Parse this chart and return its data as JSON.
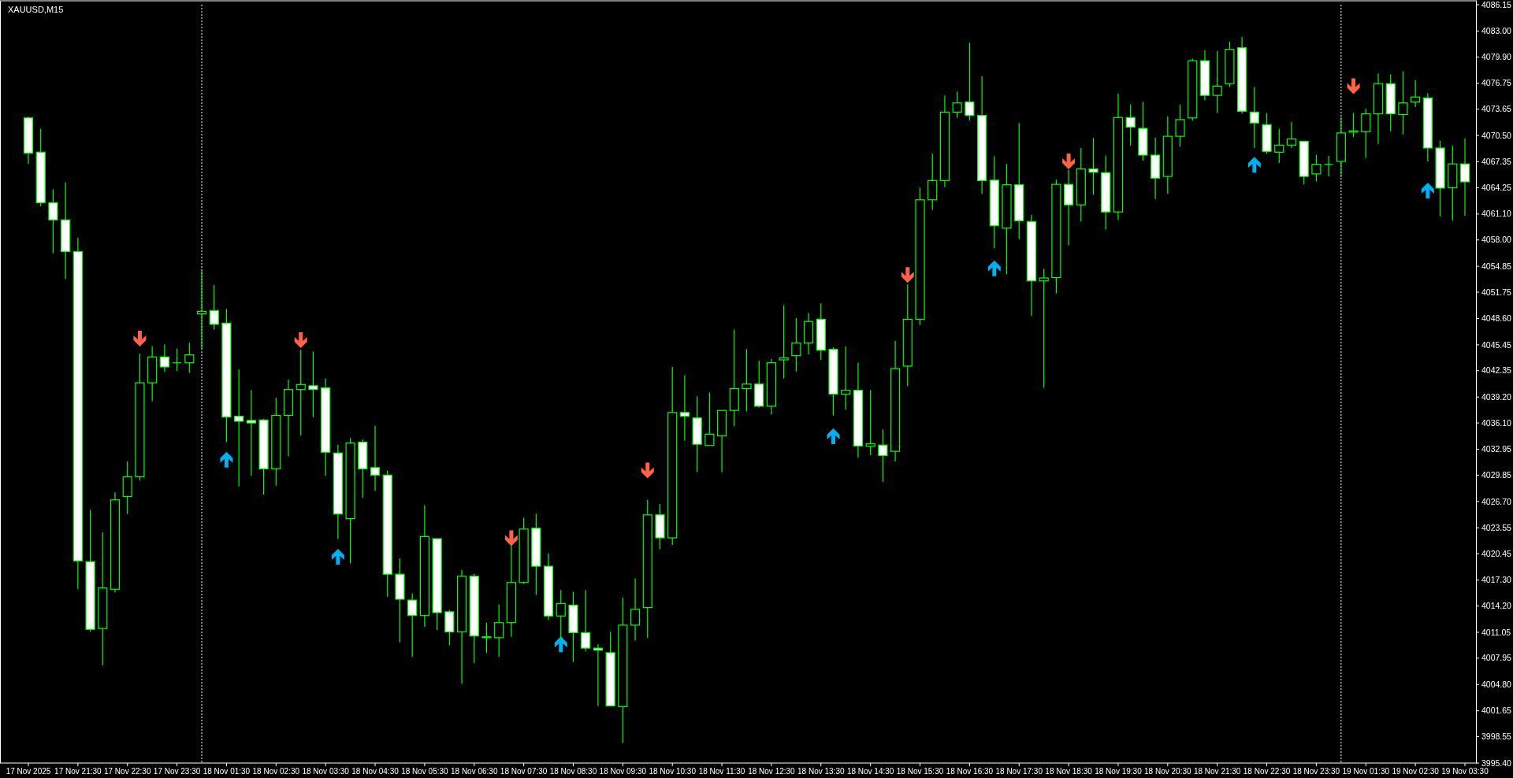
{
  "chart_data": {
    "type": "candlestick",
    "title": "XAUUSD,M15",
    "color": "#00ff00",
    "categories": [
      "17 Nov 2025",
      null,
      null,
      null,
      "17 Nov 21:30",
      null,
      null,
      null,
      "17 Nov 22:30",
      null,
      null,
      null,
      "17 Nov 23:30",
      null,
      null,
      null,
      "18 Nov 01:30",
      null,
      null,
      null,
      "18 Nov 02:30",
      null,
      null,
      null,
      "18 Nov 03:30",
      null,
      null,
      null,
      "18 Nov 04:30",
      null,
      null,
      null,
      "18 Nov 05:30",
      null,
      null,
      null,
      "18 Nov 06:30",
      null,
      null,
      null,
      "18 Nov 07:30",
      null,
      null,
      null,
      "18 Nov 08:30",
      null,
      null,
      null,
      "18 Nov 09:30",
      null,
      null,
      null,
      "18 Nov 10:30",
      null,
      null,
      null,
      "18 Nov 11:30",
      null,
      null,
      null,
      "18 Nov 12:30",
      null,
      null,
      null,
      "18 Nov 13:30",
      null,
      null,
      null,
      "18 Nov 14:30",
      null,
      null,
      null,
      "18 Nov 15:30",
      null,
      null,
      null,
      "18 Nov 16:30",
      null,
      null,
      null,
      "18 Nov 17:30",
      null,
      null,
      null,
      "18 Nov 18:30",
      null,
      null,
      null,
      "18 Nov 19:30",
      null,
      null,
      null,
      "18 Nov 20:30",
      null,
      null,
      null,
      "18 Nov 21:30",
      null,
      null,
      null,
      "18 Nov 22:30",
      null,
      null,
      null,
      "18 Nov 23:30",
      null,
      null,
      null,
      "19 Nov 01:30",
      null,
      null,
      null,
      "19 Nov 02:30",
      null,
      null,
      null,
      "19 Nov 03:30"
    ],
    "ohlc": [
      [
        4072.6,
        4072.8,
        4067.1,
        4068.4
      ],
      [
        4068.5,
        4071.3,
        4062.0,
        4062.45
      ],
      [
        4062.45,
        4064.05,
        4056.4,
        4060.4
      ],
      [
        4060.4,
        4064.9,
        4053.35,
        4056.6
      ],
      [
        4056.6,
        4058.25,
        4016.2,
        4019.6
      ],
      [
        4019.5,
        4025.7,
        4011.1,
        4011.4
      ],
      [
        4011.5,
        4023.0,
        4007.1,
        4016.35
      ],
      [
        4016.2,
        4027.8,
        4015.8,
        4026.9
      ],
      [
        4027.3,
        4031.5,
        4025.2,
        4029.65
      ],
      [
        4029.65,
        4044.4,
        4029.2,
        4040.9
      ],
      [
        4040.9,
        4045.3,
        4038.7,
        4044.0
      ],
      [
        4044.0,
        4045.5,
        4042.2,
        4042.8
      ],
      [
        4043.3,
        4045.0,
        4042.3,
        4043.3
      ],
      [
        4043.3,
        4045.7,
        4042.1,
        4044.25
      ],
      [
        4049.15,
        4054.4,
        4045.0,
        4049.45
      ],
      [
        4049.55,
        4052.6,
        4047.25,
        4047.9
      ],
      [
        4048.05,
        4049.75,
        4033.8,
        4036.8
      ],
      [
        4036.9,
        4042.5,
        4028.5,
        4036.3
      ],
      [
        4036.4,
        4040.05,
        4029.8,
        4036.1
      ],
      [
        4036.45,
        4036.6,
        4027.5,
        4030.6
      ],
      [
        4030.6,
        4039.1,
        4028.6,
        4037.0
      ],
      [
        4037.0,
        4041.3,
        4032.1,
        4040.1
      ],
      [
        4040.1,
        4044.85,
        4034.6,
        4040.7
      ],
      [
        4040.55,
        4044.65,
        4036.8,
        4040.1
      ],
      [
        4040.3,
        4041.4,
        4029.8,
        4032.6
      ],
      [
        4032.5,
        4033.5,
        4022.2,
        4025.2
      ],
      [
        4024.65,
        4034.3,
        4019.3,
        4033.7
      ],
      [
        4033.8,
        4034.15,
        4027.1,
        4030.6
      ],
      [
        4030.75,
        4035.75,
        4027.95,
        4029.85
      ],
      [
        4029.85,
        4030.4,
        4015.3,
        4018.0
      ],
      [
        4018.0,
        4019.9,
        4009.85,
        4015.0
      ],
      [
        4014.9,
        4015.7,
        4008.1,
        4013.05
      ],
      [
        4013.05,
        4026.25,
        4011.7,
        4022.5
      ],
      [
        4022.25,
        4022.25,
        4011.3,
        4013.4
      ],
      [
        4013.5,
        4013.7,
        4009.5,
        4011.1
      ],
      [
        4011.1,
        4018.5,
        4004.9,
        4017.75
      ],
      [
        4017.75,
        4018.05,
        4007.35,
        4010.6
      ],
      [
        4010.5,
        4012.2,
        4008.6,
        4010.4
      ],
      [
        4010.4,
        4014.4,
        4008.1,
        4012.2
      ],
      [
        4012.2,
        4021.4,
        4010.5,
        4017.0
      ],
      [
        4017.0,
        4024.75,
        4016.85,
        4023.4
      ],
      [
        4023.5,
        4025.25,
        4015.5,
        4018.95
      ],
      [
        4018.95,
        4020.5,
        4012.5,
        4013.0
      ],
      [
        4013.0,
        4016.1,
        4010.3,
        4014.5
      ],
      [
        4014.3,
        4015.9,
        4007.5,
        4011.0
      ],
      [
        4011.0,
        4016.1,
        4008.75,
        4009.15
      ],
      [
        4009.15,
        4009.6,
        4002.2,
        4008.9
      ],
      [
        4008.6,
        4011.1,
        4002.2,
        4002.25
      ],
      [
        4002.15,
        4015.2,
        3997.8,
        4011.9
      ],
      [
        4011.9,
        4017.5,
        4010.05,
        4013.8
      ],
      [
        4014.0,
        4026.9,
        4010.35,
        4025.1
      ],
      [
        4025.1,
        4026.4,
        4021.0,
        4022.35
      ],
      [
        4022.35,
        4042.8,
        4021.5,
        4037.35
      ],
      [
        4037.35,
        4041.8,
        4034.0,
        4036.9
      ],
      [
        4036.7,
        4039.3,
        4030.25,
        4033.55
      ],
      [
        4033.4,
        4039.75,
        4033.4,
        4034.75
      ],
      [
        4034.55,
        4037.6,
        4030.2,
        4037.6
      ],
      [
        4037.6,
        4047.25,
        4035.7,
        4040.2
      ],
      [
        4040.2,
        4044.95,
        4037.5,
        4040.75
      ],
      [
        4040.75,
        4043.55,
        4037.95,
        4038.1
      ],
      [
        4038.1,
        4043.75,
        4037.1,
        4043.3
      ],
      [
        4043.65,
        4050.2,
        4041.4,
        4043.9
      ],
      [
        4044.15,
        4048.65,
        4042.25,
        4045.65
      ],
      [
        4045.65,
        4049.25,
        4044.3,
        4048.25
      ],
      [
        4048.5,
        4050.4,
        4043.65,
        4044.8
      ],
      [
        4044.9,
        4045.15,
        4037.0,
        4039.55
      ],
      [
        4039.55,
        4045.25,
        4037.7,
        4040.0
      ],
      [
        4040.0,
        4043.3,
        4031.95,
        4033.35
      ],
      [
        4033.3,
        4040.05,
        4032.25,
        4033.6
      ],
      [
        4033.45,
        4035.3,
        4029.05,
        4032.2
      ],
      [
        4032.7,
        4045.9,
        4031.5,
        4042.6
      ],
      [
        4042.9,
        4052.7,
        4040.5,
        4048.5
      ],
      [
        4048.5,
        4064.3,
        4047.8,
        4062.8
      ],
      [
        4062.8,
        4068.35,
        4061.6,
        4065.1
      ],
      [
        4065.1,
        4075.3,
        4064.3,
        4073.3
      ],
      [
        4073.3,
        4075.75,
        4072.6,
        4074.4
      ],
      [
        4074.5,
        4081.6,
        4072.3,
        4072.9
      ],
      [
        4072.9,
        4077.6,
        4063.5,
        4065.1
      ],
      [
        4065.15,
        4068.0,
        4057.0,
        4059.7
      ],
      [
        4059.4,
        4067.1,
        4053.9,
        4064.6
      ],
      [
        4064.6,
        4072.0,
        4058.1,
        4060.3
      ],
      [
        4060.2,
        4061.0,
        4048.9,
        4053.1
      ],
      [
        4053.1,
        4054.55,
        4040.3,
        4053.45
      ],
      [
        4053.5,
        4065.2,
        4051.6,
        4064.65
      ],
      [
        4064.65,
        4066.4,
        4057.35,
        4062.2
      ],
      [
        4062.2,
        4069.0,
        4060.2,
        4066.5
      ],
      [
        4066.5,
        4070.2,
        4063.4,
        4066.1
      ],
      [
        4066.05,
        4068.1,
        4059.25,
        4061.35
      ],
      [
        4061.35,
        4075.5,
        4060.4,
        4072.65
      ],
      [
        4072.65,
        4074.2,
        4069.3,
        4071.5
      ],
      [
        4071.35,
        4074.5,
        4067.5,
        4068.15
      ],
      [
        4068.15,
        4070.25,
        4062.9,
        4065.4
      ],
      [
        4065.6,
        4072.8,
        4063.5,
        4070.4
      ],
      [
        4070.4,
        4074.2,
        4069.15,
        4072.4
      ],
      [
        4072.6,
        4079.7,
        4072.3,
        4079.45
      ],
      [
        4079.45,
        4080.7,
        4074.7,
        4075.3
      ],
      [
        4075.3,
        4080.6,
        4073.2,
        4076.4
      ],
      [
        4076.7,
        4081.75,
        4076.3,
        4080.8
      ],
      [
        4081.0,
        4082.3,
        4073.1,
        4073.4
      ],
      [
        4073.3,
        4076.3,
        4069.0,
        4072.0
      ],
      [
        4071.8,
        4073.2,
        4068.3,
        4068.6
      ],
      [
        4068.5,
        4071.3,
        4067.2,
        4069.35
      ],
      [
        4069.35,
        4072.1,
        4069.0,
        4070.1
      ],
      [
        4069.8,
        4069.8,
        4064.65,
        4065.6
      ],
      [
        4065.9,
        4068.2,
        4065.0,
        4067.05
      ],
      [
        4067.05,
        4068.05,
        4065.6,
        4067.05
      ],
      [
        4067.4,
        4072.7,
        4065.5,
        4070.8
      ],
      [
        4070.9,
        4073.2,
        4070.3,
        4071.05
      ],
      [
        4070.95,
        4073.7,
        4067.8,
        4073.1
      ],
      [
        4073.1,
        4077.9,
        4069.5,
        4076.7
      ],
      [
        4076.7,
        4077.8,
        4071.0,
        4073.1
      ],
      [
        4073.0,
        4078.2,
        4070.6,
        4074.4
      ],
      [
        4074.5,
        4077.1,
        4073.9,
        4075.1
      ],
      [
        4075.0,
        4075.55,
        4067.4,
        4069.0
      ],
      [
        4069.0,
        4069.85,
        4060.8,
        4064.2
      ],
      [
        4064.25,
        4069.3,
        4060.3,
        4067.1
      ],
      [
        4067.1,
        4070.15,
        4060.9,
        4064.95
      ]
    ],
    "series": [
      {
        "type": "scatter",
        "color": "#ff6347",
        "values": [
          null,
          null,
          null,
          null,
          null,
          null,
          null,
          null,
          null,
          4046.2,
          null,
          null,
          null,
          null,
          null,
          null,
          null,
          null,
          null,
          null,
          null,
          null,
          4046.0,
          null,
          null,
          null,
          null,
          null,
          null,
          null,
          null,
          null,
          null,
          null,
          null,
          null,
          null,
          null,
          null,
          4022.3,
          null,
          null,
          null,
          null,
          null,
          null,
          null,
          null,
          null,
          null,
          4030.4,
          null,
          null,
          null,
          null,
          null,
          null,
          null,
          null,
          null,
          null,
          null,
          null,
          null,
          null,
          null,
          null,
          null,
          null,
          null,
          null,
          4053.8,
          null,
          null,
          null,
          null,
          null,
          null,
          null,
          null,
          null,
          null,
          null,
          null,
          4067.4,
          null,
          null,
          null,
          null,
          null,
          null,
          null,
          null,
          null,
          null,
          null,
          null,
          null,
          null,
          null,
          null,
          null,
          null,
          null,
          null,
          null,
          null,
          4076.4,
          null,
          null,
          null,
          null,
          null,
          null,
          null,
          null,
          null
        ]
      },
      {
        "type": "scatter",
        "color": "#00b0f0",
        "values": [
          null,
          null,
          null,
          null,
          null,
          null,
          null,
          null,
          null,
          null,
          null,
          null,
          null,
          null,
          null,
          null,
          4031.7,
          null,
          null,
          null,
          null,
          null,
          null,
          null,
          null,
          4020.1,
          null,
          null,
          null,
          null,
          null,
          null,
          null,
          null,
          null,
          null,
          null,
          null,
          null,
          null,
          null,
          null,
          null,
          4009.6,
          null,
          null,
          null,
          null,
          null,
          null,
          null,
          null,
          null,
          null,
          null,
          null,
          null,
          null,
          null,
          null,
          null,
          null,
          null,
          null,
          null,
          4034.5,
          null,
          null,
          null,
          null,
          null,
          null,
          null,
          null,
          null,
          null,
          null,
          null,
          4054.6,
          null,
          null,
          null,
          null,
          null,
          null,
          null,
          null,
          null,
          null,
          null,
          null,
          null,
          null,
          null,
          null,
          null,
          null,
          null,
          null,
          4067.0,
          null,
          null,
          null,
          null,
          null,
          null,
          null,
          null,
          null,
          null,
          null,
          null,
          null,
          4063.9,
          null,
          null,
          null
        ]
      }
    ],
    "ylim": [
      3995.4,
      4086.15
    ],
    "yticks": [
      {
        "value": 3995.4,
        "label": "3995.40"
      },
      3998.55,
      4001.65,
      {
        "value": 4004.8,
        "label": "4004.80"
      },
      4007.95,
      4011.05,
      {
        "value": 4014.2,
        "label": "4014.20"
      },
      {
        "value": 4017.3,
        "label": "4017.30"
      },
      4020.45,
      4023.55,
      {
        "value": 4026.7,
        "label": "4026.70"
      },
      4029.85,
      4032.95,
      {
        "value": 4036.1,
        "label": "4036.10"
      },
      {
        "value": 4039.2,
        "label": "4039.20"
      },
      4042.35,
      4045.45,
      {
        "value": 4048.6,
        "label": "4048.60"
      },
      4051.75,
      4054.85,
      {
        "value": 4058,
        "label": "4058.00"
      },
      {
        "value": 4061.1,
        "label": "4061.10"
      },
      4064.25,
      4067.35,
      {
        "value": 4070.5,
        "label": "4070.50"
      },
      4073.65,
      4076.75,
      {
        "value": 4079.9,
        "label": "4079.90"
      },
      {
        "value": 4083,
        "label": "4083.00"
      },
      4086.15
    ]
  }
}
